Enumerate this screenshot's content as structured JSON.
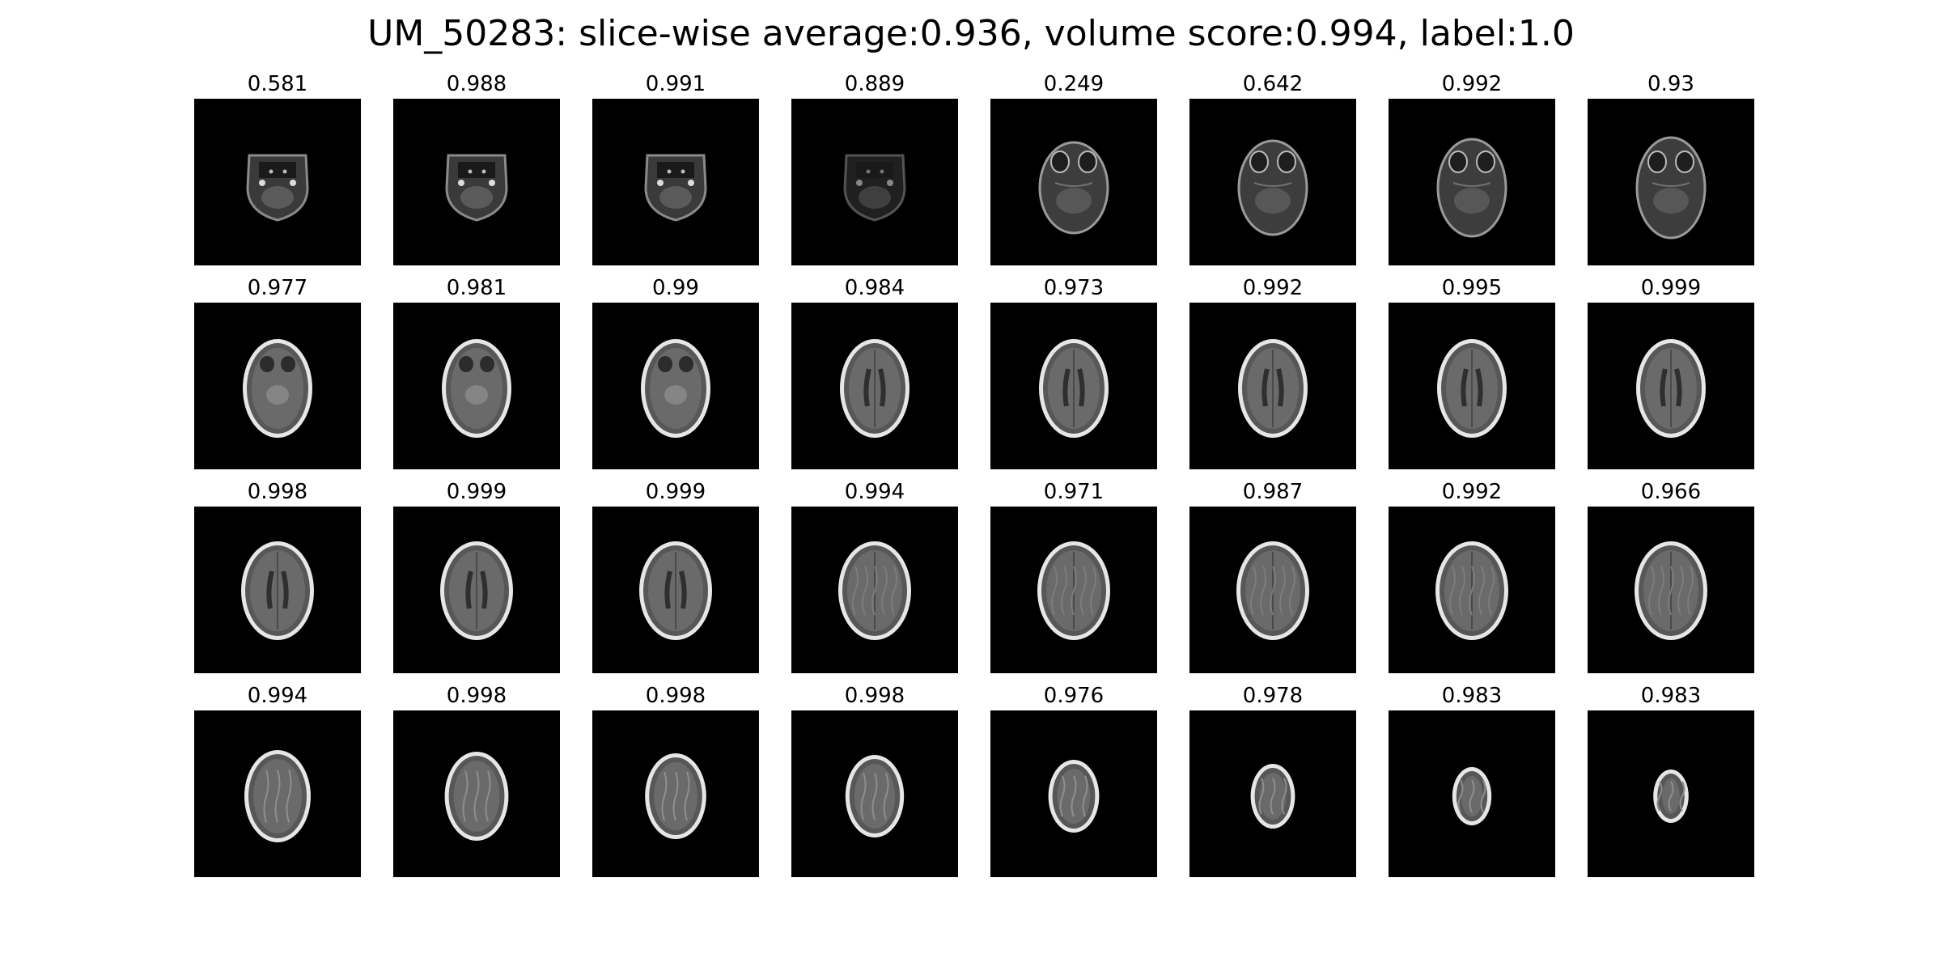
{
  "title": "UM_50283: slice-wise average:0.936, volume score:0.994, label:1.0",
  "slices": [
    {
      "score": "0.581",
      "kind": "skullbase"
    },
    {
      "score": "0.988",
      "kind": "skullbase"
    },
    {
      "score": "0.991",
      "kind": "skullbase"
    },
    {
      "score": "0.889",
      "kind": "skullbase-dim"
    },
    {
      "score": "0.249",
      "kind": "orbits"
    },
    {
      "score": "0.642",
      "kind": "orbits"
    },
    {
      "score": "0.992",
      "kind": "orbits"
    },
    {
      "score": "0.93",
      "kind": "orbits"
    },
    {
      "score": "0.977",
      "kind": "midbrain"
    },
    {
      "score": "0.981",
      "kind": "midbrain"
    },
    {
      "score": "0.99",
      "kind": "midbrain"
    },
    {
      "score": "0.984",
      "kind": "ventricles"
    },
    {
      "score": "0.973",
      "kind": "ventricles"
    },
    {
      "score": "0.992",
      "kind": "ventricles"
    },
    {
      "score": "0.995",
      "kind": "ventricles"
    },
    {
      "score": "0.999",
      "kind": "ventricles"
    },
    {
      "score": "0.998",
      "kind": "ventricles"
    },
    {
      "score": "0.999",
      "kind": "ventricles"
    },
    {
      "score": "0.999",
      "kind": "ventricles"
    },
    {
      "score": "0.994",
      "kind": "upper"
    },
    {
      "score": "0.971",
      "kind": "upper"
    },
    {
      "score": "0.987",
      "kind": "upper"
    },
    {
      "score": "0.992",
      "kind": "upper"
    },
    {
      "score": "0.966",
      "kind": "upper"
    },
    {
      "score": "0.994",
      "kind": "vertex"
    },
    {
      "score": "0.998",
      "kind": "vertex"
    },
    {
      "score": "0.998",
      "kind": "vertex"
    },
    {
      "score": "0.998",
      "kind": "vertex"
    },
    {
      "score": "0.976",
      "kind": "top"
    },
    {
      "score": "0.978",
      "kind": "top"
    },
    {
      "score": "0.983",
      "kind": "top"
    },
    {
      "score": "0.983",
      "kind": "top"
    }
  ]
}
